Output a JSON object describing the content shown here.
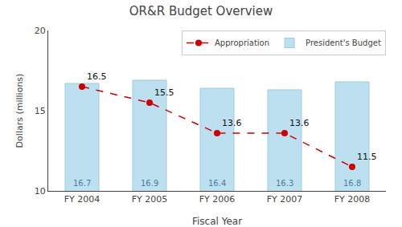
{
  "chart_data": {
    "type": "bar",
    "title": "OR&R Budget Overview",
    "xlabel": "Fiscal Year",
    "ylabel": "Dollars (millions)",
    "categories": [
      "FY 2004",
      "FY 2005",
      "FY 2006",
      "FY 2007",
      "FY 2008"
    ],
    "series": [
      {
        "name": "Appropriation",
        "type": "line",
        "color": "#cc0000",
        "marker": "circle",
        "line_style": "dashed",
        "values": [
          16.5,
          15.5,
          13.6,
          13.6,
          11.5
        ]
      },
      {
        "name": "President's Budget",
        "type": "bar",
        "color": "#bde0f0",
        "values": [
          16.7,
          16.9,
          16.4,
          16.3,
          16.8
        ]
      }
    ],
    "ylim": [
      10,
      20
    ],
    "yticks": [
      10,
      15,
      20
    ],
    "grid": false,
    "legend": "upper right",
    "data_labels": true
  }
}
